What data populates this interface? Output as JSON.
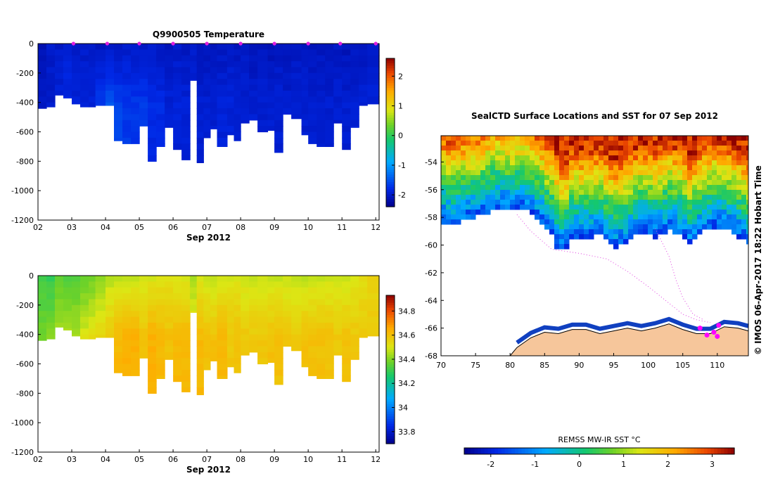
{
  "chart_data": [
    {
      "type": "heatmap",
      "title": "Q9900505  Temperature",
      "variable": "temperature",
      "xlabel": "Sep 2012",
      "x_tick_labels": [
        "02",
        "03",
        "04",
        "05",
        "06",
        "07",
        "08",
        "09",
        "10",
        "11",
        "12"
      ],
      "x_ticks": [
        2,
        3,
        4,
        5,
        6,
        7,
        8,
        9,
        10,
        11,
        12
      ],
      "xlim": [
        2.0,
        12.1
      ],
      "y_tick_labels": [
        "0",
        "-200",
        "-400",
        "-600",
        "-800",
        "-1000",
        "-1200"
      ],
      "y_ticks": [
        0,
        -200,
        -400,
        -600,
        -800,
        -1000,
        -1200
      ],
      "ylim": [
        -1200,
        0
      ],
      "colorbar_tick_labels": [
        "2",
        "1",
        "0",
        "-1",
        "-2"
      ],
      "colorbar_ticks": [
        2,
        1,
        0,
        -1,
        -2
      ],
      "colorbar_range": [
        -2.4,
        2.6
      ],
      "profile_markers_x": [
        3.05,
        4.05,
        5.0,
        6.0,
        7.0,
        8.0,
        9.0,
        10.0,
        10.95,
        12.0
      ],
      "profile_time_edges": [
        2.0,
        2.25,
        2.5,
        2.75,
        3.0,
        3.25,
        3.5,
        3.7,
        4.0,
        4.25,
        4.5,
        4.75,
        5.0,
        5.25,
        5.5,
        5.75,
        6.0,
        6.25,
        6.5,
        6.7,
        6.9,
        7.1,
        7.3,
        7.6,
        7.8,
        8.0,
        8.25,
        8.5,
        8.8,
        9.0,
        9.25,
        9.5,
        9.8,
        10.0,
        10.25,
        10.5,
        10.75,
        11.0,
        11.25,
        11.5,
        11.75,
        12.1
      ],
      "profile_max_depth": [
        440,
        430,
        350,
        370,
        410,
        430,
        430,
        420,
        420,
        660,
        680,
        680,
        560,
        800,
        700,
        570,
        720,
        790,
        250,
        810,
        640,
        580,
        700,
        620,
        660,
        540,
        520,
        600,
        590,
        740,
        480,
        510,
        620,
        680,
        700,
        700,
        540,
        720,
        570,
        420,
        410
      ],
      "surface_values": [
        -2.1,
        -2.0,
        -2.0,
        -1.95,
        -2.0,
        -2.0,
        -2.0,
        -2.05,
        -2.0,
        -2.05,
        -2.0,
        -2.0,
        -2.0,
        -2.0,
        -2.05,
        -2.1,
        -2.0,
        -2.05,
        -2.0,
        -2.05,
        -2.05,
        -2.1,
        -2.05,
        -2.0,
        -2.05,
        -2.0,
        -2.1,
        -2.05,
        -2.1,
        -2.05,
        -2.1,
        -2.05,
        -2.05,
        -2.1,
        -2.05,
        -2.1,
        -2.05,
        -2.1,
        -2.05,
        -2.1,
        -2.0
      ],
      "deep_values": [
        -2.0,
        -2.0,
        -1.9,
        -1.8,
        -1.9,
        -1.9,
        -1.9,
        -1.7,
        -1.5,
        -1.6,
        -1.7,
        -1.7,
        -1.7,
        -1.8,
        -1.8,
        -1.9,
        -1.9,
        -1.9,
        -1.9,
        -1.95,
        -1.95,
        -1.95,
        -1.9,
        -1.9,
        -1.95,
        -1.95,
        -1.95,
        -1.95,
        -1.95,
        -1.95,
        -1.95,
        -1.95,
        -1.95,
        -1.95,
        -1.95,
        -1.95,
        -1.95,
        -1.95,
        -1.95,
        -1.9,
        -1.9
      ]
    },
    {
      "type": "heatmap",
      "title": "",
      "variable": "salinity",
      "xlabel": "Sep 2012",
      "x_tick_labels": [
        "02",
        "03",
        "04",
        "05",
        "06",
        "07",
        "08",
        "09",
        "10",
        "11",
        "12"
      ],
      "x_ticks": [
        2,
        3,
        4,
        5,
        6,
        7,
        8,
        9,
        10,
        11,
        12
      ],
      "xlim": [
        2.0,
        12.1
      ],
      "y_tick_labels": [
        "0",
        "-200",
        "-400",
        "-600",
        "-800",
        "-1000",
        "-1200"
      ],
      "y_ticks": [
        0,
        -200,
        -400,
        -600,
        -800,
        -1000,
        -1200
      ],
      "ylim": [
        -1200,
        0
      ],
      "colorbar_tick_labels": [
        "34.8",
        "34.6",
        "34.4",
        "34.2",
        "34",
        "33.8"
      ],
      "colorbar_ticks": [
        34.8,
        34.6,
        34.4,
        34.2,
        34.0,
        33.8
      ],
      "colorbar_range": [
        33.7,
        34.93
      ],
      "surface_values": [
        34.32,
        34.3,
        34.35,
        34.33,
        34.34,
        34.36,
        34.38,
        34.42,
        34.46,
        34.47,
        34.48,
        34.48,
        34.48,
        34.5,
        34.52,
        34.52,
        34.5,
        34.5,
        34.44,
        34.5,
        34.48,
        34.47,
        34.5,
        34.5,
        34.5,
        34.48,
        34.48,
        34.48,
        34.48,
        34.48,
        34.48,
        34.47,
        34.47,
        34.48,
        34.48,
        34.48,
        34.48,
        34.48,
        34.5,
        34.52,
        34.55
      ],
      "deep_values": [
        34.38,
        34.4,
        34.44,
        34.45,
        34.45,
        34.5,
        34.52,
        34.55,
        34.58,
        34.62,
        34.64,
        34.64,
        34.6,
        34.64,
        34.62,
        34.6,
        34.62,
        34.62,
        34.55,
        34.62,
        34.6,
        34.6,
        34.62,
        34.58,
        34.6,
        34.58,
        34.58,
        34.58,
        34.6,
        34.6,
        34.58,
        34.58,
        34.6,
        34.6,
        34.6,
        34.6,
        34.58,
        34.6,
        34.58,
        34.58,
        34.58
      ]
    },
    {
      "type": "heatmap",
      "title": "SealCTD Surface Locations and SST for 07 Sep 2012",
      "variable": "sea surface temperature map",
      "x_tick_labels": [
        "70",
        "75",
        "80",
        "85",
        "90",
        "95",
        "100",
        "105",
        "110"
      ],
      "x_ticks": [
        70,
        75,
        80,
        85,
        90,
        95,
        100,
        105,
        110
      ],
      "xlim": [
        70,
        114.5
      ],
      "y_tick_labels": [
        "-54",
        "-56",
        "-58",
        "-60",
        "-62",
        "-64",
        "-66",
        "-68"
      ],
      "y_ticks": [
        -54,
        -56,
        -58,
        -60,
        -62,
        -64,
        -66,
        -68
      ],
      "ylim": [
        -68,
        -52.1
      ],
      "colorbar_label": "REMSS MW-IR SST °C",
      "colorbar_tick_labels": [
        "-2",
        "-1",
        "0",
        "1",
        "2",
        "3"
      ],
      "colorbar_ticks": [
        -2,
        -1,
        0,
        1,
        2,
        3
      ],
      "colorbar_range": [
        -2.6,
        3.5
      ],
      "ice_edge": [
        [
          70,
          -58.3
        ],
        [
          72,
          -58.6
        ],
        [
          74,
          -58.1
        ],
        [
          76,
          -57.9
        ],
        [
          78,
          -57.4
        ],
        [
          80,
          -57.6
        ],
        [
          82,
          -57.3
        ],
        [
          84,
          -58.2
        ],
        [
          86,
          -59.2
        ],
        [
          87,
          -60.4
        ],
        [
          88,
          -60.3
        ],
        [
          89,
          -59.4
        ],
        [
          91,
          -59.6
        ],
        [
          93,
          -59.2
        ],
        [
          95,
          -60.3
        ],
        [
          97,
          -59.8
        ],
        [
          99,
          -59.0
        ],
        [
          101,
          -59.4
        ],
        [
          103,
          -58.9
        ],
        [
          105,
          -59.3
        ],
        [
          106,
          -60.0
        ],
        [
          108,
          -59.0
        ],
        [
          110,
          -58.7
        ],
        [
          112,
          -59.0
        ],
        [
          114.5,
          -60.0
        ]
      ],
      "coast": [
        [
          80,
          -68
        ],
        [
          81,
          -67.4
        ],
        [
          83,
          -66.7
        ],
        [
          85,
          -66.3
        ],
        [
          87,
          -66.4
        ],
        [
          89,
          -66.1
        ],
        [
          91,
          -66.1
        ],
        [
          93,
          -66.4
        ],
        [
          95,
          -66.2
        ],
        [
          97,
          -66.0
        ],
        [
          99,
          -66.2
        ],
        [
          101,
          -66.0
        ],
        [
          103,
          -65.7
        ],
        [
          105,
          -66.1
        ],
        [
          107,
          -66.4
        ],
        [
          109,
          -66.4
        ],
        [
          111,
          -65.9
        ],
        [
          113,
          -66.0
        ],
        [
          114.5,
          -66.2
        ],
        [
          114.5,
          -68
        ]
      ],
      "track": [
        [
          81,
          -57.8
        ],
        [
          83,
          -59.0
        ],
        [
          86,
          -60.3
        ],
        [
          90,
          -60.6
        ],
        [
          94,
          -61.0
        ],
        [
          97,
          -61.9
        ],
        [
          100,
          -63.0
        ],
        [
          103,
          -64.2
        ],
        [
          105,
          -65.0
        ],
        [
          107,
          -65.4
        ],
        [
          109,
          -65.6
        ]
      ],
      "track2": [
        [
          101,
          -58.8
        ],
        [
          103,
          -60.8
        ],
        [
          104,
          -62.5
        ],
        [
          105,
          -63.8
        ],
        [
          106.5,
          -65.0
        ],
        [
          108,
          -65.4
        ]
      ],
      "seal_positions": [
        [
          107.5,
          -66.0
        ],
        [
          108.5,
          -66.5
        ],
        [
          109.5,
          -66.3
        ],
        [
          110,
          -66.6
        ],
        [
          110.2,
          -65.8
        ]
      ]
    }
  ],
  "watermark": "© IMOS 06-Apr-2017 18:22 Hobart Time",
  "colors": {
    "land": "#f6c69b",
    "track": "#e040e0",
    "seal": "#ff00ff",
    "axis": "#000000"
  }
}
